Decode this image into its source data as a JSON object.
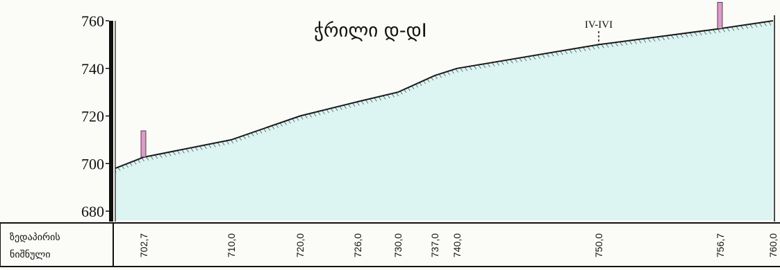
{
  "title": "ჭრილი დ-დI",
  "section_marker": "IV-IVI",
  "row_label": [
    "ზედაპირის",
    "ნიშნული"
  ],
  "colors": {
    "fill": "#dcf4f2",
    "line": "#1a1a1a",
    "marker": "#e09ac8",
    "axis": "#111111"
  },
  "chart_data": {
    "type": "area",
    "title": "ჭრილი დ-დI",
    "xlabel": "",
    "ylabel": "",
    "ylim": [
      680,
      760
    ],
    "yticks": [
      760,
      740,
      720,
      700,
      680
    ],
    "x_tick_labels": [
      "702,7",
      "710,0",
      "720,0",
      "726,0",
      "730,0",
      "737,0",
      "740,0",
      "750,0",
      "756,7",
      "760,0"
    ],
    "surface_elevations": [
      702.7,
      710.0,
      720.0,
      726.0,
      730.0,
      737.0,
      740.0,
      750.0,
      756.7,
      760.0
    ],
    "markers": [
      {
        "at_value": 702.7,
        "label": ""
      },
      {
        "at_value": 756.7,
        "label": ""
      }
    ],
    "section_marker": {
      "at_value": 750.0,
      "label": "IV-IVI"
    }
  }
}
